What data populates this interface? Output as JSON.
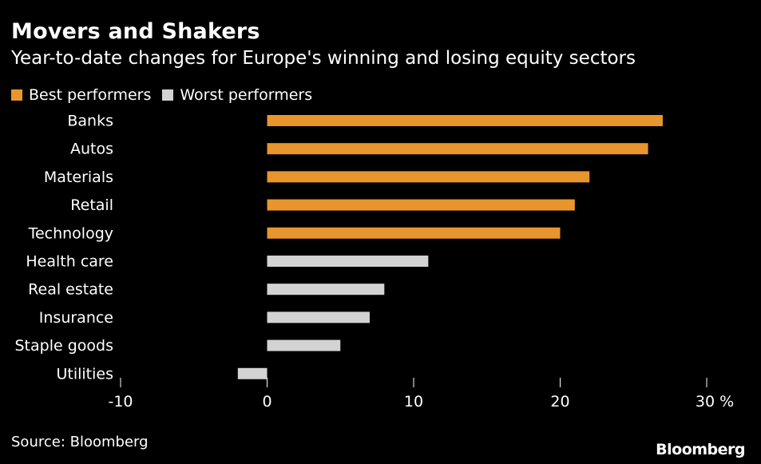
{
  "title": "Movers and Shakers",
  "subtitle": "Year-to-date changes for Europe's winning and losing equity sectors",
  "legend": {
    "best_label": "Best performers",
    "worst_label": "Worst performers"
  },
  "source": "Source: Bloomberg",
  "brand": "Bloomberg",
  "colors": {
    "best": "#E8952D",
    "worst": "#D3D3D3",
    "background": "#000000"
  },
  "chart_data": {
    "type": "bar",
    "orientation": "horizontal",
    "title": "Movers and Shakers",
    "subtitle": "Year-to-date changes for Europe's winning and losing equity sectors",
    "unit": "%",
    "categories": [
      "Banks",
      "Autos",
      "Materials",
      "Retail",
      "Technology",
      "Health care",
      "Real estate",
      "Insurance",
      "Staple goods",
      "Utilities"
    ],
    "series": [
      {
        "name": "Best performers",
        "values": [
          27,
          26,
          22,
          21,
          20,
          null,
          null,
          null,
          null,
          null
        ]
      },
      {
        "name": "Worst performers",
        "values": [
          null,
          null,
          null,
          null,
          null,
          11,
          8,
          7,
          5,
          -2
        ]
      }
    ],
    "xlim": [
      -10,
      30
    ],
    "xticks": [
      -10,
      0,
      10,
      20,
      30
    ],
    "legend_position": "top-left",
    "grid": false
  }
}
